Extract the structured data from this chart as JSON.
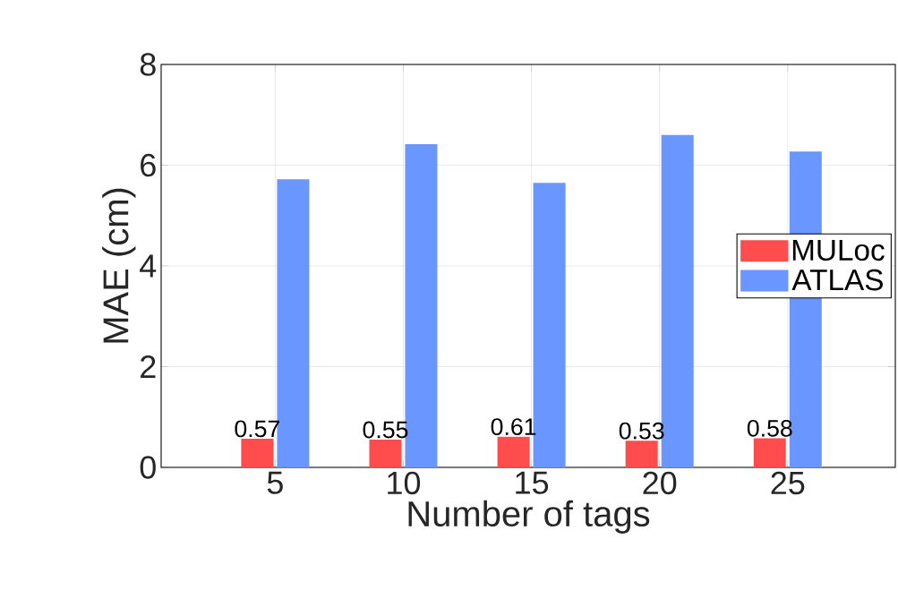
{
  "chart_data": {
    "type": "bar",
    "xlabel": "Number of tags",
    "ylabel": "MAE (cm)",
    "categories": [
      "5",
      "10",
      "15",
      "20",
      "25"
    ],
    "series": [
      {
        "name": "MULoc",
        "color": "#ff4d4d",
        "values": [
          0.57,
          0.55,
          0.61,
          0.53,
          0.58
        ],
        "value_labels": [
          "0.57",
          "0.55",
          "0.61",
          "0.53",
          "0.58"
        ]
      },
      {
        "name": "ATLAS",
        "color": "#6a96ff",
        "values": [
          5.72,
          6.42,
          5.65,
          6.6,
          6.27
        ]
      }
    ],
    "ylim": [
      0,
      8
    ],
    "yticks": [
      0,
      2,
      4,
      6,
      8
    ],
    "grid": true,
    "legend": "right"
  }
}
